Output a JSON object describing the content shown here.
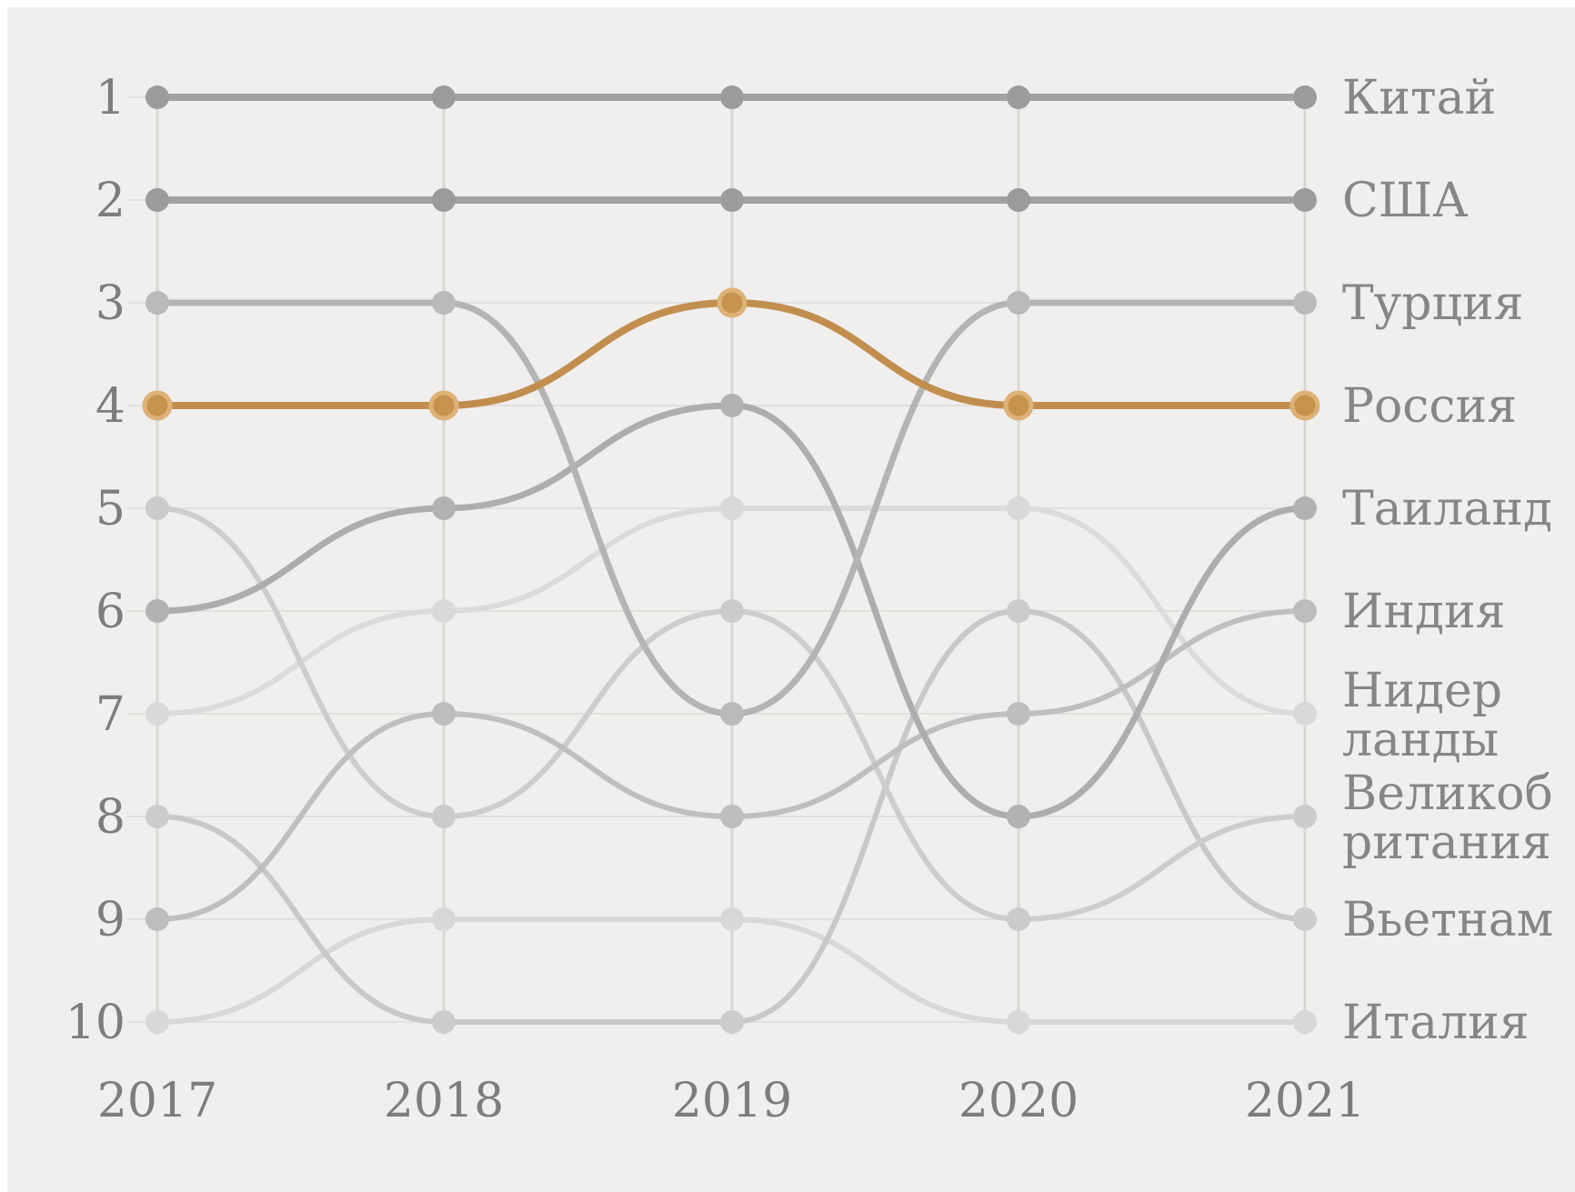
{
  "chart_data": {
    "type": "line",
    "subtype": "bump-rank-chart",
    "x": [
      "2017",
      "2018",
      "2019",
      "2020",
      "2021"
    ],
    "xlabel": "",
    "ylabel": "",
    "y_axis": {
      "kind": "rank",
      "ticks": [
        "1",
        "2",
        "3",
        "4",
        "5",
        "6",
        "7",
        "8",
        "9",
        "10"
      ],
      "range": [
        1,
        10
      ],
      "inverted": true
    },
    "grid": "on",
    "legend_position": "right-of-last-point",
    "background_color": "#f0efee",
    "h_gridline_color": "#e1e0dd",
    "v_gridline_color": "#d8d7d4",
    "axis_text_color": "#7d7d7d",
    "label_text_color": "#868686",
    "highlight_color": "#c28e4f",
    "series": [
      {
        "key": "china",
        "name": "Китай",
        "label_lines": [
          "Китай"
        ],
        "values": [
          1,
          1,
          1,
          1,
          1
        ],
        "line_color": "#a2a2a2",
        "dot_color": "#9b9b9b",
        "width": 8,
        "highlight": false
      },
      {
        "key": "usa",
        "name": "США",
        "label_lines": [
          "США"
        ],
        "values": [
          2,
          2,
          2,
          2,
          2
        ],
        "line_color": "#a2a2a2",
        "dot_color": "#9b9b9b",
        "width": 8,
        "highlight": false
      },
      {
        "key": "turkey",
        "name": "Турция",
        "label_lines": [
          "Турция"
        ],
        "values": [
          3,
          3,
          7,
          3,
          3
        ],
        "line_color": "#b4b4b4",
        "dot_color": "#bababa",
        "width": 7,
        "highlight": false
      },
      {
        "key": "russia",
        "name": "Россия",
        "label_lines": [
          "Россия"
        ],
        "values": [
          4,
          4,
          3,
          4,
          4
        ],
        "line_color": "#c28e4f",
        "dot_color": "#c6934f",
        "dot_ring": "#ddb177",
        "width": 8,
        "highlight": true
      },
      {
        "key": "thailand",
        "name": "Таиланд",
        "label_lines": [
          "Таиланд"
        ],
        "values": [
          6,
          5,
          4,
          8,
          5
        ],
        "line_color": "#adadad",
        "dot_color": "#b2b2b2",
        "width": 7,
        "highlight": false
      },
      {
        "key": "india",
        "name": "Индия",
        "label_lines": [
          "Индия"
        ],
        "values": [
          9,
          7,
          8,
          7,
          6
        ],
        "line_color": "#bfbfbf",
        "dot_color": "#bdbdbd",
        "width": 6,
        "highlight": false
      },
      {
        "key": "netherlands",
        "name": "Нидерланды",
        "label_lines": [
          "Нидер",
          "ланды"
        ],
        "values": [
          7,
          6,
          5,
          5,
          7
        ],
        "line_color": "#dbdbdb",
        "dot_color": "#d9d9d9",
        "width": 6,
        "highlight": false
      },
      {
        "key": "uk",
        "name": "Великобритания",
        "label_lines": [
          "Великоб",
          "ритания"
        ],
        "values": [
          5,
          8,
          6,
          9,
          8
        ],
        "line_color": "#cdcdcd",
        "dot_color": "#cbcbcb",
        "width": 6,
        "highlight": false
      },
      {
        "key": "vietnam",
        "name": "Вьетнам",
        "label_lines": [
          "Вьетнам"
        ],
        "values": [
          8,
          10,
          10,
          6,
          9
        ],
        "line_color": "#c8c8c8",
        "dot_color": "#cccccc",
        "width": 6,
        "highlight": false
      },
      {
        "key": "italy",
        "name": "Италия",
        "label_lines": [
          "Италия"
        ],
        "values": [
          10,
          9,
          9,
          10,
          10
        ],
        "line_color": "#d8d8d8",
        "dot_color": "#d8d8d8",
        "width": 6,
        "highlight": false
      }
    ],
    "draw_order": [
      "netherlands",
      "italy",
      "vietnam",
      "uk",
      "india",
      "thailand",
      "turkey",
      "usa",
      "china",
      "russia"
    ]
  }
}
